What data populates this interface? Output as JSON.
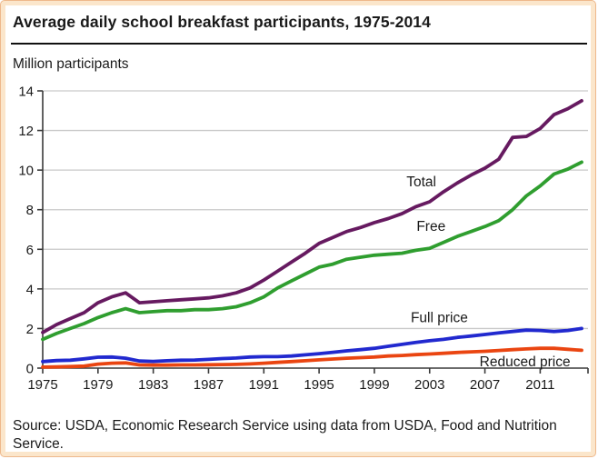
{
  "figure": {
    "title": "Average daily school breakfast participants, 1975-2014",
    "units_label": "Million participants",
    "source_text": "Source: USDA, Economic Research Service using data from USDA, Food and Nutrition Service.",
    "frame_border_color": "#eeb98c",
    "frame_fill_color": "#fbe6cb",
    "grid_color": "#c9c9c9",
    "axis_color": "#3a3a3a",
    "text_color": "#1a1a1a"
  },
  "chart_data": {
    "type": "line",
    "title": "Average daily school breakfast participants, 1975-2014",
    "ylabel": "Million participants",
    "xlim": [
      1975,
      2014
    ],
    "ylim": [
      0,
      14
    ],
    "yticks": [
      0,
      2,
      4,
      6,
      8,
      10,
      12,
      14
    ],
    "xticks_labeled": [
      1975,
      1979,
      1983,
      1987,
      1991,
      1995,
      1999,
      2003,
      2007,
      2011
    ],
    "grid": "horizontal",
    "legend_position": "inline-labels",
    "x": [
      1975,
      1976,
      1977,
      1978,
      1979,
      1980,
      1981,
      1982,
      1983,
      1984,
      1985,
      1986,
      1987,
      1988,
      1989,
      1990,
      1991,
      1992,
      1993,
      1994,
      1995,
      1996,
      1997,
      1998,
      1999,
      2000,
      2001,
      2002,
      2003,
      2004,
      2005,
      2006,
      2007,
      2008,
      2009,
      2010,
      2011,
      2012,
      2013,
      2014
    ],
    "series": [
      {
        "name": "Total",
        "color": "#661a60",
        "label": {
          "text": "Total",
          "x": 2002.4,
          "y": 9.4
        },
        "values": [
          1.8,
          2.2,
          2.5,
          2.8,
          3.3,
          3.6,
          3.8,
          3.3,
          3.35,
          3.4,
          3.45,
          3.5,
          3.55,
          3.65,
          3.8,
          4.05,
          4.45,
          4.9,
          5.35,
          5.8,
          6.3,
          6.6,
          6.9,
          7.1,
          7.35,
          7.55,
          7.8,
          8.15,
          8.4,
          8.9,
          9.35,
          9.75,
          10.1,
          10.55,
          11.65,
          11.7,
          12.1,
          12.8,
          13.1,
          13.5
        ]
      },
      {
        "name": "Free",
        "color": "#2f9e2f",
        "label": {
          "text": "Free",
          "x": 2003.1,
          "y": 7.15
        },
        "values": [
          1.45,
          1.75,
          2.0,
          2.25,
          2.55,
          2.8,
          3.0,
          2.8,
          2.85,
          2.9,
          2.9,
          2.95,
          2.95,
          3.0,
          3.1,
          3.3,
          3.6,
          4.05,
          4.4,
          4.75,
          5.1,
          5.25,
          5.5,
          5.6,
          5.7,
          5.75,
          5.8,
          5.95,
          6.05,
          6.35,
          6.65,
          6.9,
          7.15,
          7.45,
          8.0,
          8.7,
          9.2,
          9.8,
          10.05,
          10.4
        ]
      },
      {
        "name": "Reduced price",
        "color": "#ea4511",
        "label": {
          "text": "Reduced price",
          "x": 2009.9,
          "y": 0.32
        },
        "values": [
          0.05,
          0.06,
          0.08,
          0.1,
          0.2,
          0.25,
          0.26,
          0.16,
          0.15,
          0.15,
          0.16,
          0.16,
          0.17,
          0.18,
          0.19,
          0.21,
          0.25,
          0.29,
          0.33,
          0.37,
          0.42,
          0.46,
          0.5,
          0.53,
          0.56,
          0.61,
          0.64,
          0.68,
          0.71,
          0.75,
          0.79,
          0.82,
          0.85,
          0.89,
          0.93,
          0.97,
          1.0,
          1.0,
          0.95,
          0.9
        ]
      },
      {
        "name": "Full price",
        "color": "#2129cf",
        "label": {
          "text": "Full price",
          "x": 2003.7,
          "y": 2.55
        },
        "values": [
          0.33,
          0.38,
          0.4,
          0.47,
          0.55,
          0.56,
          0.5,
          0.36,
          0.34,
          0.37,
          0.4,
          0.41,
          0.44,
          0.48,
          0.51,
          0.56,
          0.58,
          0.58,
          0.61,
          0.67,
          0.73,
          0.8,
          0.87,
          0.93,
          1.0,
          1.1,
          1.2,
          1.3,
          1.38,
          1.45,
          1.55,
          1.62,
          1.7,
          1.78,
          1.85,
          1.92,
          1.9,
          1.85,
          1.9,
          2.0
        ]
      }
    ]
  }
}
